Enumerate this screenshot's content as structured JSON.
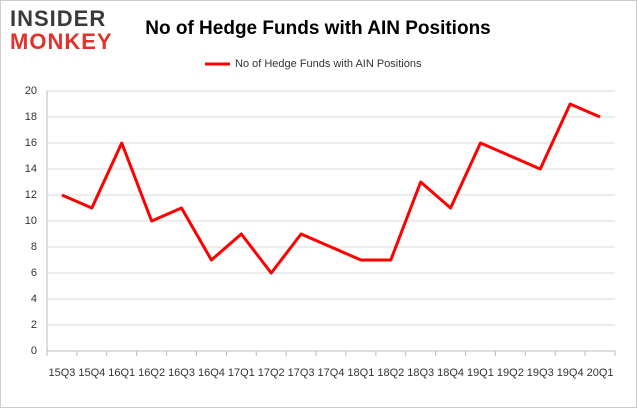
{
  "logo": {
    "top": "INSIDER",
    "bottom": "MONKEY"
  },
  "chart_data": {
    "type": "line",
    "title": "No of Hedge Funds with AIN Positions",
    "categories": [
      "15Q3",
      "15Q4",
      "16Q1",
      "16Q2",
      "16Q3",
      "16Q4",
      "17Q1",
      "17Q2",
      "17Q3",
      "17Q4",
      "18Q1",
      "18Q2",
      "18Q3",
      "18Q4",
      "19Q1",
      "19Q2",
      "19Q3",
      "19Q4",
      "20Q1"
    ],
    "series": [
      {
        "name": "No of Hedge Funds with AIN Positions",
        "color": "#ff0000",
        "values": [
          12,
          11,
          16,
          10,
          11,
          7,
          9,
          6,
          9,
          8,
          7,
          7,
          13,
          11,
          16,
          15,
          14,
          19,
          18
        ]
      }
    ],
    "ylim": [
      0,
      20
    ],
    "yticks": [
      0,
      2,
      4,
      6,
      8,
      10,
      12,
      14,
      16,
      18,
      20
    ],
    "grid": true,
    "legend": "top"
  }
}
